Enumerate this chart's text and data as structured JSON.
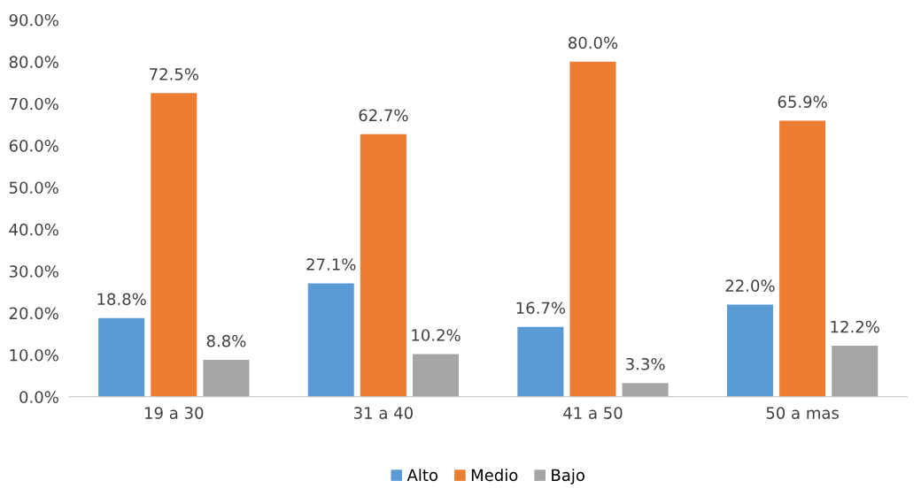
{
  "chart_data": {
    "type": "bar",
    "categories": [
      "19 a 30",
      "31 a 40",
      "41 a 50",
      "50 a mas"
    ],
    "series": [
      {
        "name": "Alto",
        "color": "#5b9bd5",
        "values": [
          18.8,
          27.1,
          16.7,
          22.0
        ],
        "value_labels": [
          "18.8%",
          "27.1%",
          "16.7%",
          "22.0%"
        ]
      },
      {
        "name": "Medio",
        "color": "#ed7d31",
        "values": [
          72.5,
          62.7,
          80.0,
          65.9
        ],
        "value_labels": [
          "72.5%",
          "62.7%",
          "80.0%",
          "65.9%"
        ]
      },
      {
        "name": "Bajo",
        "color": "#a5a5a5",
        "values": [
          8.8,
          10.2,
          3.3,
          12.2
        ],
        "value_labels": [
          "8.8%",
          "10.2%",
          "3.3%",
          "12.2%"
        ]
      }
    ],
    "ylim": [
      0,
      90
    ],
    "yticks": [
      {
        "value": 0,
        "label": "0.0%"
      },
      {
        "value": 10,
        "label": "10.0%"
      },
      {
        "value": 20,
        "label": "20.0%"
      },
      {
        "value": 30,
        "label": "30.0%"
      },
      {
        "value": 40,
        "label": "40.0%"
      },
      {
        "value": 50,
        "label": "50.0%"
      },
      {
        "value": 60,
        "label": "60.0%"
      },
      {
        "value": 70,
        "label": "70.0%"
      },
      {
        "value": 80,
        "label": "80.0%"
      },
      {
        "value": 90,
        "label": "90.0%"
      }
    ],
    "grid": false,
    "legend": "bottom"
  }
}
